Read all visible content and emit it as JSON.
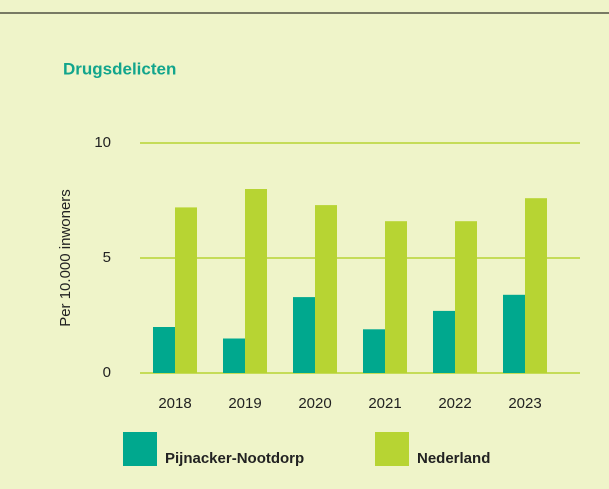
{
  "chart_data": {
    "type": "bar",
    "title": "Drugsdelicten",
    "y_label": "Per 10.000 inwoners",
    "categories": [
      "2018",
      "2019",
      "2020",
      "2021",
      "2022",
      "2023"
    ],
    "series": [
      {
        "name": "Pijnacker-Nootdorp",
        "color": "#00a88e",
        "values": [
          2.0,
          1.5,
          3.3,
          1.9,
          2.7,
          3.4
        ]
      },
      {
        "name": "Nederland",
        "color": "#b7d433",
        "values": [
          7.2,
          8.0,
          7.3,
          6.6,
          6.6,
          7.6
        ]
      }
    ],
    "ylim": [
      0,
      10
    ],
    "yticks": [
      0,
      5,
      10
    ],
    "grid": true
  }
}
